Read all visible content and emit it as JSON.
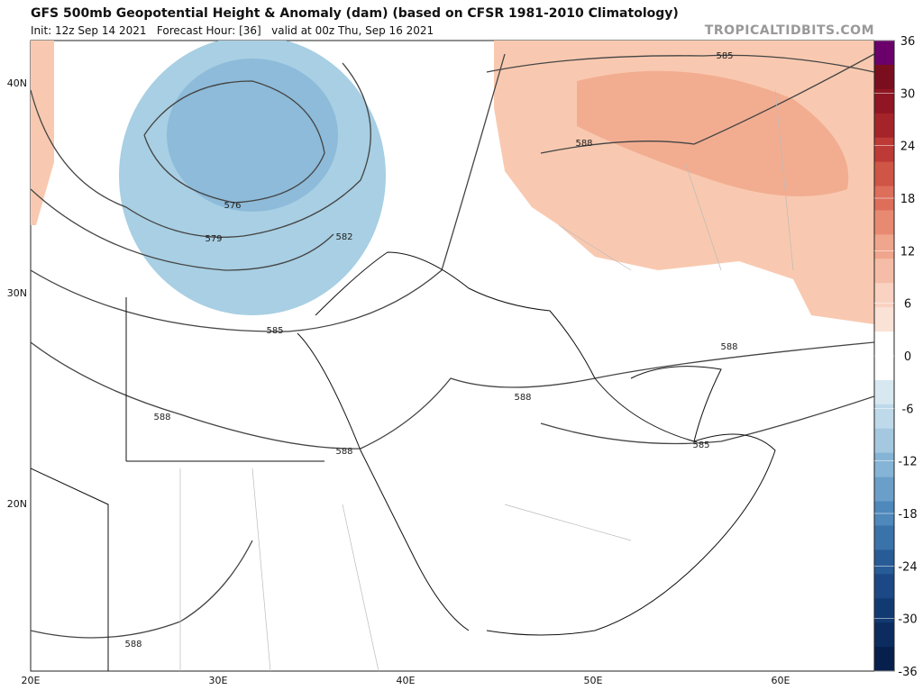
{
  "header": {
    "title": "GFS 500mb Geopotential Height & Anomaly (dam) (based on CFSR 1981-2010 Climatology)",
    "subtitle": "Init: 12z Sep 14 2021   Forecast Hour: [36]   valid at 00z Thu, Sep 16 2021",
    "watermark": "TROPICALTIDBITS.COM"
  },
  "map": {
    "lon_labels": [
      "20E",
      "30E",
      "40E",
      "50E",
      "60E"
    ],
    "lat_labels": [
      "40N",
      "30N",
      "20N"
    ],
    "contour_labels": [
      "585",
      "588",
      "576",
      "579",
      "582",
      "585",
      "588",
      "588",
      "588",
      "588",
      "585",
      "588"
    ]
  },
  "colorbar": {
    "ticks": [
      36,
      30,
      24,
      18,
      12,
      6,
      0,
      -6,
      -12,
      -18,
      -24,
      -30,
      -36
    ]
  }
}
